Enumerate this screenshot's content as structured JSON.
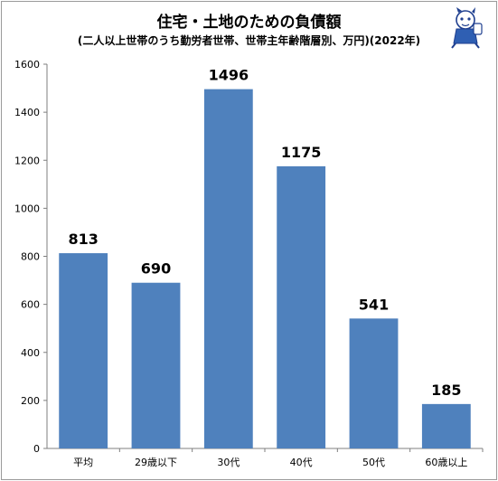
{
  "chart_data": {
    "type": "bar",
    "title": "住宅・土地のための負債額",
    "subtitle": "(二人以上世帯のうち勤労者世帯、世帯主年齢階層別、万円)(2022年)",
    "categories": [
      "平均",
      "29歳以下",
      "30代",
      "40代",
      "50代",
      "60歳以上"
    ],
    "values": [
      813,
      690,
      1496,
      1175,
      541,
      185
    ],
    "value_labels": [
      "813",
      "690",
      "1496",
      "1175",
      "541",
      "185"
    ],
    "ylim": [
      0,
      1600
    ],
    "yticks": [
      "0",
      "200",
      "400",
      "600",
      "800",
      "1000",
      "1200",
      "1400",
      "1600"
    ],
    "grid": false,
    "legend": "none",
    "bar_color": "#4f81bd"
  },
  "mascot": {
    "icon": "mascot-character-icon"
  }
}
